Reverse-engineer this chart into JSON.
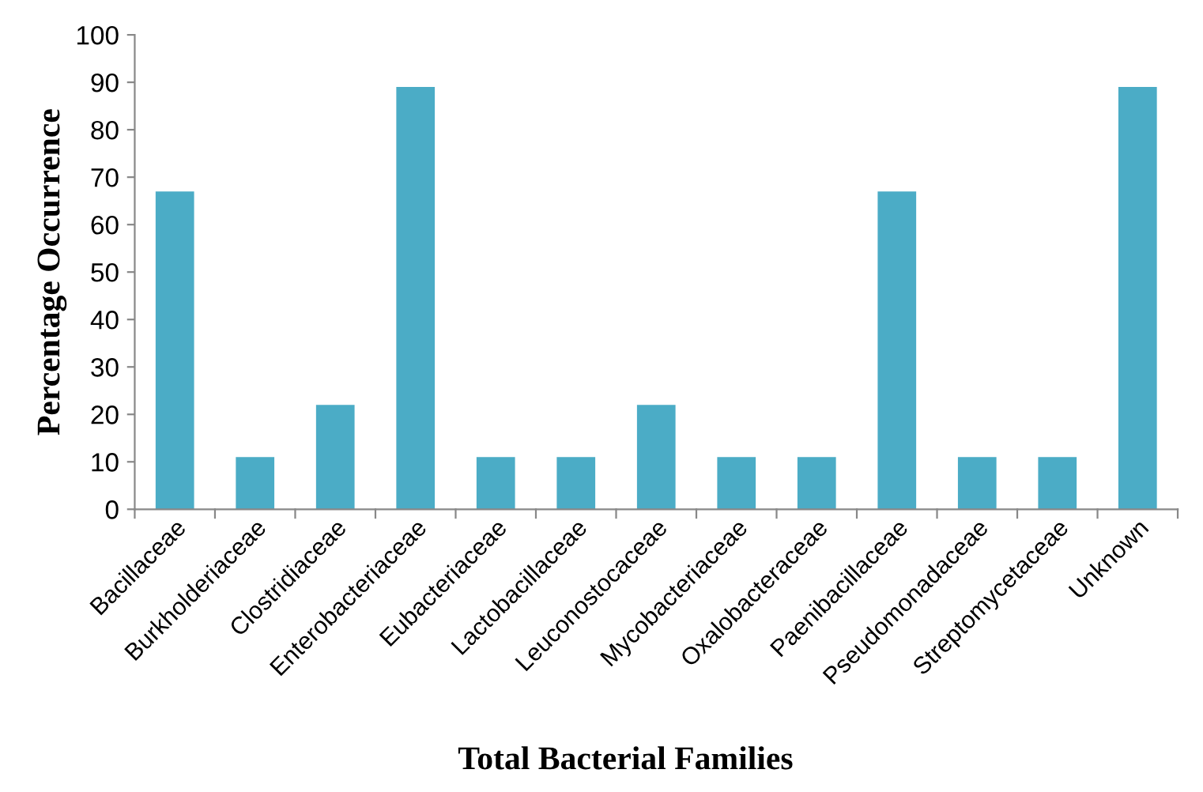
{
  "chart_data": {
    "type": "bar",
    "xlabel": "Total Bacterial Families",
    "ylabel": "Percentage Occurrence",
    "categories": [
      "Bacillaceae",
      "Burkholderiaceae",
      "Clostridiaceae",
      "Enterobacteriaceae",
      "Eubacteriaceae",
      "Lactobacillaceae",
      "Leuconostocaceae",
      "Mycobacteriaceae",
      "Oxalobacteraceae",
      "Paenibacillaceae",
      "Pseudomonadaceae",
      "Streptomycetaceae",
      "Unknown"
    ],
    "values": [
      67,
      11,
      22,
      89,
      11,
      11,
      22,
      11,
      11,
      67,
      11,
      11,
      89
    ],
    "color": "#4bacc6",
    "ylim": [
      0,
      100
    ],
    "yticks": [
      0,
      10,
      20,
      30,
      40,
      50,
      60,
      70,
      80,
      90,
      100
    ],
    "grid": false,
    "legend": false
  }
}
